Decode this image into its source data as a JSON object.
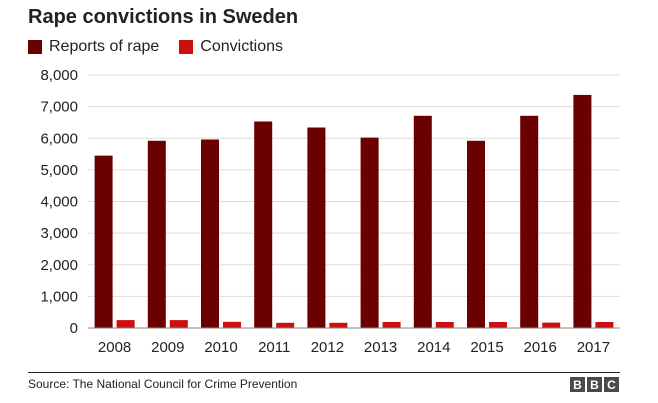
{
  "chart_data": {
    "type": "bar",
    "title": "Rape convictions in Sweden",
    "categories": [
      "2008",
      "2009",
      "2010",
      "2011",
      "2012",
      "2013",
      "2014",
      "2015",
      "2016",
      "2017"
    ],
    "series": [
      {
        "name": "Reports of rape",
        "color": "#6b0000",
        "values": [
          5450,
          5920,
          5960,
          6530,
          6340,
          6020,
          6710,
          5920,
          6710,
          7370
        ]
      },
      {
        "name": "Convictions",
        "color": "#cc1010",
        "values": [
          250,
          250,
          195,
          165,
          165,
          190,
          190,
          190,
          170,
          190
        ]
      }
    ],
    "ylim": [
      0,
      8000
    ],
    "yticks": [
      "0",
      "1,000",
      "2,000",
      "3,000",
      "4,000",
      "5,000",
      "6,000",
      "7,000",
      "8,000"
    ],
    "xlabel": "",
    "ylabel": "",
    "grid": true,
    "legend_position": "top-left"
  },
  "footer": {
    "source": "Source: The National Council for Crime Prevention",
    "logo_letters": [
      "B",
      "B",
      "C"
    ]
  }
}
